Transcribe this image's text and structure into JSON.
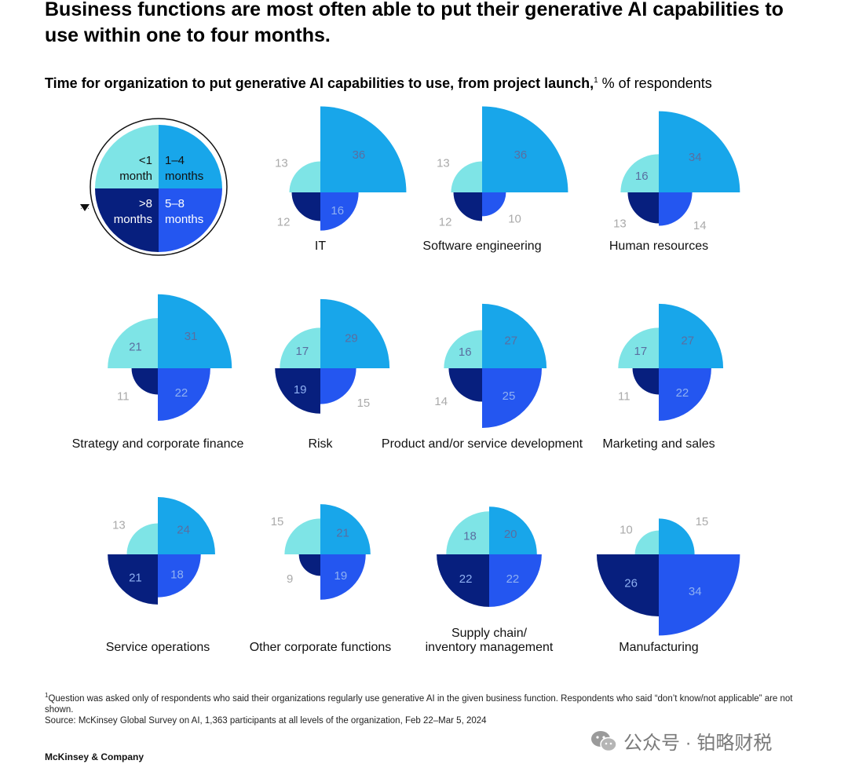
{
  "header": {
    "title": "Business functions are most often able to put their generative AI capabilities to use within one to four months.",
    "subtitle_bold": "Time for organization to put generative AI capabilities to use, from project launch,",
    "subtitle_footnote_mark": "1",
    "subtitle_regular": " % of respondents"
  },
  "legend": {
    "less_than_1": "<1 month",
    "one_to_four": "1–4 months",
    "five_to_eight": "5–8 months",
    "more_than_8": ">8 months"
  },
  "colors": {
    "less_than_1": "#7ee4e6",
    "one_to_four": "#18a6ea",
    "five_to_eight": "#2456f0",
    "more_than_8": "#071f7e",
    "value_light": "#aaaaaa",
    "value_on_dark": "#8fb0f2",
    "value_on_light": "#5a6ea0"
  },
  "chart_data": {
    "type": "polar-area",
    "unit": "% of respondents",
    "categories_order": [
      "1–4 months",
      "<1 month",
      ">8 months",
      "5–8 months"
    ],
    "functions": [
      {
        "name": "IT",
        "lt1": 13,
        "m1_4": 36,
        "m5_8": 16,
        "gt8": 12
      },
      {
        "name": "Software engineering",
        "lt1": 13,
        "m1_4": 36,
        "m5_8": 10,
        "gt8": 12
      },
      {
        "name": "Human resources",
        "lt1": 16,
        "m1_4": 34,
        "m5_8": 14,
        "gt8": 13
      },
      {
        "name": "Strategy and corporate finance",
        "lt1": 21,
        "m1_4": 31,
        "m5_8": 22,
        "gt8": 11
      },
      {
        "name": "Risk",
        "lt1": 17,
        "m1_4": 29,
        "m5_8": 15,
        "gt8": 19
      },
      {
        "name": "Product and/or service development",
        "lt1": 16,
        "m1_4": 27,
        "m5_8": 25,
        "gt8": 14
      },
      {
        "name": "Marketing and sales",
        "lt1": 17,
        "m1_4": 27,
        "m5_8": 22,
        "gt8": 11
      },
      {
        "name": "Service operations",
        "lt1": 13,
        "m1_4": 24,
        "m5_8": 18,
        "gt8": 21
      },
      {
        "name": "Other corporate functions",
        "lt1": 15,
        "m1_4": 21,
        "m5_8": 19,
        "gt8": 9
      },
      {
        "name": "Supply chain/ inventory management",
        "lt1": 18,
        "m1_4": 20,
        "m5_8": 22,
        "gt8": 22
      },
      {
        "name": "Manufacturing",
        "lt1": 10,
        "m1_4": 15,
        "m5_8": 34,
        "gt8": 26
      }
    ]
  },
  "footnotes": {
    "mark": "1",
    "note1": "Question was asked only of respondents who said their organizations regularly use generative AI in the given business function. Respondents who said “don’t know/not applicable” are not shown.",
    "source": "Source: McKinsey Global Survey on AI, 1,363 participants at all levels of the organization, Feb 22–Mar 5, 2024"
  },
  "brand": "McKinsey & Company",
  "watermark": {
    "text": "公众号 · 铂略财税",
    "icon": "wechat-icon"
  }
}
